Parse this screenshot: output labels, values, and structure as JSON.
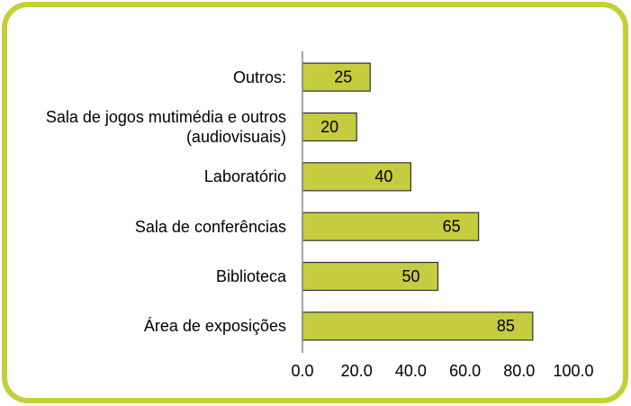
{
  "chart_data": {
    "type": "bar",
    "orientation": "horizontal",
    "categories": [
      "Outros:",
      "Sala de jogos mutimédia e outros (audiovisuais)",
      "Laboratório",
      "Sala de conferências",
      "Biblioteca",
      "Área de exposições"
    ],
    "values": [
      25,
      20,
      40,
      65,
      50,
      85
    ],
    "color": "#c5cc3f",
    "xlim": [
      0,
      100
    ],
    "xticks": [
      {
        "value": 0,
        "label": "0.0"
      },
      {
        "value": 20,
        "label": "20.0"
      },
      {
        "value": 40,
        "label": "40.0"
      },
      {
        "value": 60,
        "label": "60.0"
      },
      {
        "value": 80,
        "label": "80.0"
      },
      {
        "value": 100,
        "label": "100.0"
      }
    ],
    "grid": false
  }
}
